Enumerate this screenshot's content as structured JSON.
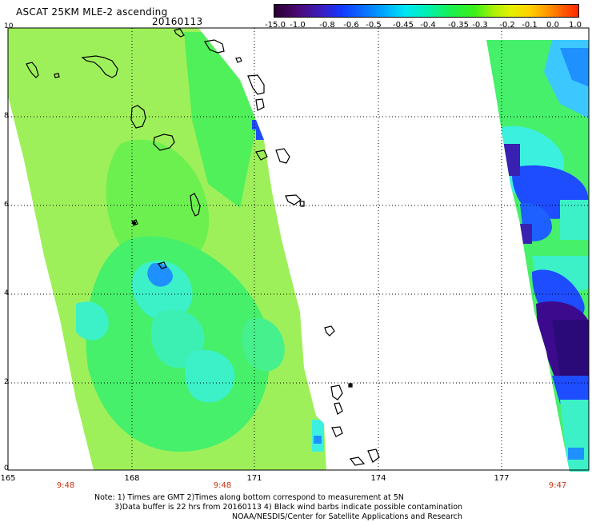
{
  "header": {
    "title": "ASCAT 25KM MLE-2 ascending",
    "date": "20160113"
  },
  "colorbar": {
    "labels": [
      "-15.0",
      "-1.0",
      "-0.8",
      "-0.6",
      "-0.5",
      "-0.45",
      "-0.4",
      "-0.35",
      "-0.3",
      "-0.2",
      "-0.1",
      "0.0",
      "1.0"
    ]
  },
  "axes": {
    "y_ticks": [
      "0",
      "2",
      "4",
      "6",
      "8",
      "10"
    ],
    "x_ticks": [
      "165",
      "168",
      "171",
      "174",
      "177"
    ],
    "time_labels": [
      "9:48",
      "9:48",
      "9:47"
    ]
  },
  "notes": {
    "line1": "Note: 1) Times are GMT 2)Times along bottom correspond to measurement at 5N",
    "line2": "3)Data buffer is 22 hrs from 20160113 4) Black wind barbs indicate possible contamination",
    "line3": "NOAA/NESDIS/Center for Satellite Applications and Research"
  },
  "colors": {
    "swath_base": "#9ff05a",
    "swath_green": "#4cf04c",
    "swath_cyan": "#3cf0c8",
    "swath_blue": "#1e4cff",
    "swath_purple": "#3c0a8c",
    "grid": "#000000",
    "time_label": "#c83214"
  }
}
